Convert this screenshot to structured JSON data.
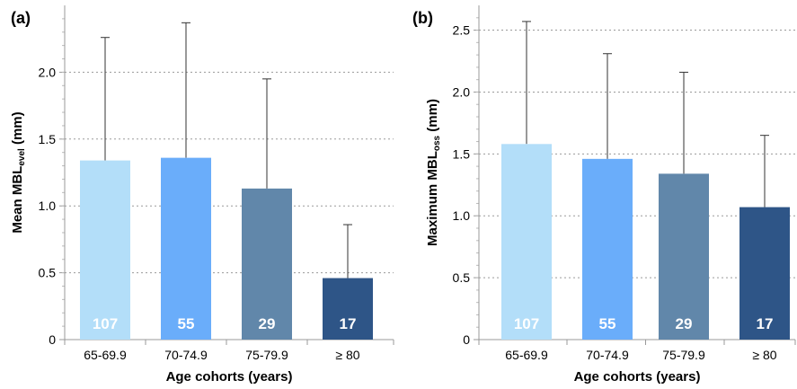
{
  "chart_data": [
    {
      "panel": "(a)",
      "type": "bar",
      "categories": [
        "65-69.9",
        "70-74.9",
        "75-79.9",
        "≥ 80"
      ],
      "values": [
        1.34,
        1.36,
        1.13,
        0.46
      ],
      "error_upper": [
        2.26,
        2.37,
        1.95,
        0.86
      ],
      "n_labels": [
        "107",
        "55",
        "29",
        "17"
      ],
      "colors": [
        "#b3def9",
        "#6aadfa",
        "#6187aa",
        "#2e5587"
      ],
      "ylabel": "Mean MBL",
      "ylabel_sub": "evel",
      "ylabel_unit": " (mm)",
      "xlabel": "Age cohorts (years)",
      "ylim": [
        0,
        2.5
      ],
      "yticks": [
        "0",
        "0.5",
        "1.0",
        "1.5",
        "2.0"
      ],
      "yticks_values": [
        0,
        0.5,
        1.0,
        1.5,
        2.0
      ],
      "grid": "horizontal dotted"
    },
    {
      "panel": "(b)",
      "type": "bar",
      "categories": [
        "65-69.9",
        "70-74.9",
        "75-79.9",
        "≥ 80"
      ],
      "values": [
        1.58,
        1.46,
        1.34,
        1.07
      ],
      "error_upper": [
        2.57,
        2.31,
        2.16,
        1.65
      ],
      "n_labels": [
        "107",
        "55",
        "29",
        "17"
      ],
      "colors": [
        "#b3def9",
        "#6aadfa",
        "#6187aa",
        "#2e5587"
      ],
      "ylabel": "Maximum MBL",
      "ylabel_sub": "oss",
      "ylabel_unit": " (mm)",
      "xlabel": "Age cohorts (years)",
      "ylim": [
        0,
        2.7
      ],
      "yticks": [
        "0",
        "0.5",
        "1.0",
        "1.5",
        "2.0",
        "2.5"
      ],
      "yticks_values": [
        0,
        0.5,
        1.0,
        1.5,
        2.0,
        2.5
      ],
      "grid": "horizontal dotted"
    }
  ]
}
